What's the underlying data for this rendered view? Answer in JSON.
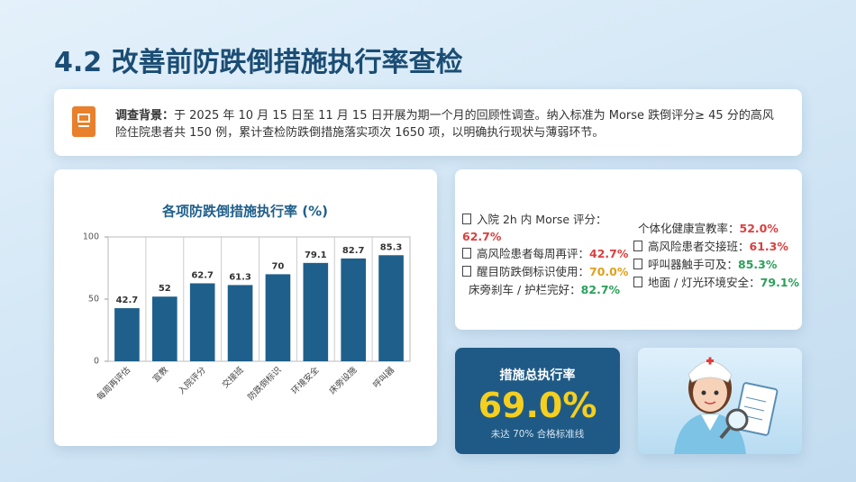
{
  "header": {
    "title": "4.2 改善前防跌倒措施执行率查检"
  },
  "background": {
    "label": "调查背景：",
    "text": "于 2025 年 10 月 15 日至 11 月 15 日开展为期一个月的回顾性调查。纳入标准为 Morse 跌倒评分≥ 45 分的高风险住院患者共 150 例，累计查检防跌倒措施落实项次 1650 项，以明确执行现状与薄弱环节。"
  },
  "chart_data": {
    "type": "bar",
    "title": "各项防跌倒措施执行率 (%)",
    "categories": [
      "每周再评估",
      "宣教",
      "入院评分",
      "交接班",
      "防跌倒标识",
      "环境安全",
      "床旁设施",
      "呼叫器"
    ],
    "values": [
      42.7,
      52,
      62.7,
      61.3,
      70,
      79.1,
      82.7,
      85.3
    ],
    "color": "#1f5f8b",
    "ylim": [
      0,
      100
    ],
    "yticks": [
      0,
      50,
      100
    ]
  },
  "stats": [
    {
      "label": "入院 2h 内 Morse 评分：",
      "value": "62.7%",
      "color": "#d94040"
    },
    {
      "label": "个体化健康宣教率：",
      "value": "52.0%",
      "color": "#d94040"
    },
    {
      "label": "高风险患者每周再评：",
      "value": "42.7%",
      "color": "#d94040"
    },
    {
      "label": "高风险患者交接班：",
      "value": "61.3%",
      "color": "#d94040"
    },
    {
      "label": "醒目防跌倒标识使用：",
      "value": "70.0%",
      "color": "#e0a020"
    },
    {
      "label": "呼叫器触手可及：",
      "value": "85.3%",
      "color": "#2aa05a"
    },
    {
      "label": "床旁刹车 / 护栏完好：",
      "value": "82.7%",
      "color": "#2aa05a"
    },
    {
      "label": "地面 / 灯光环境安全：",
      "value": "79.1%",
      "color": "#2aa05a"
    }
  ],
  "total": {
    "label": "措施总执行率",
    "value": "69.0%",
    "note": "未达 70% 合格标准线"
  }
}
